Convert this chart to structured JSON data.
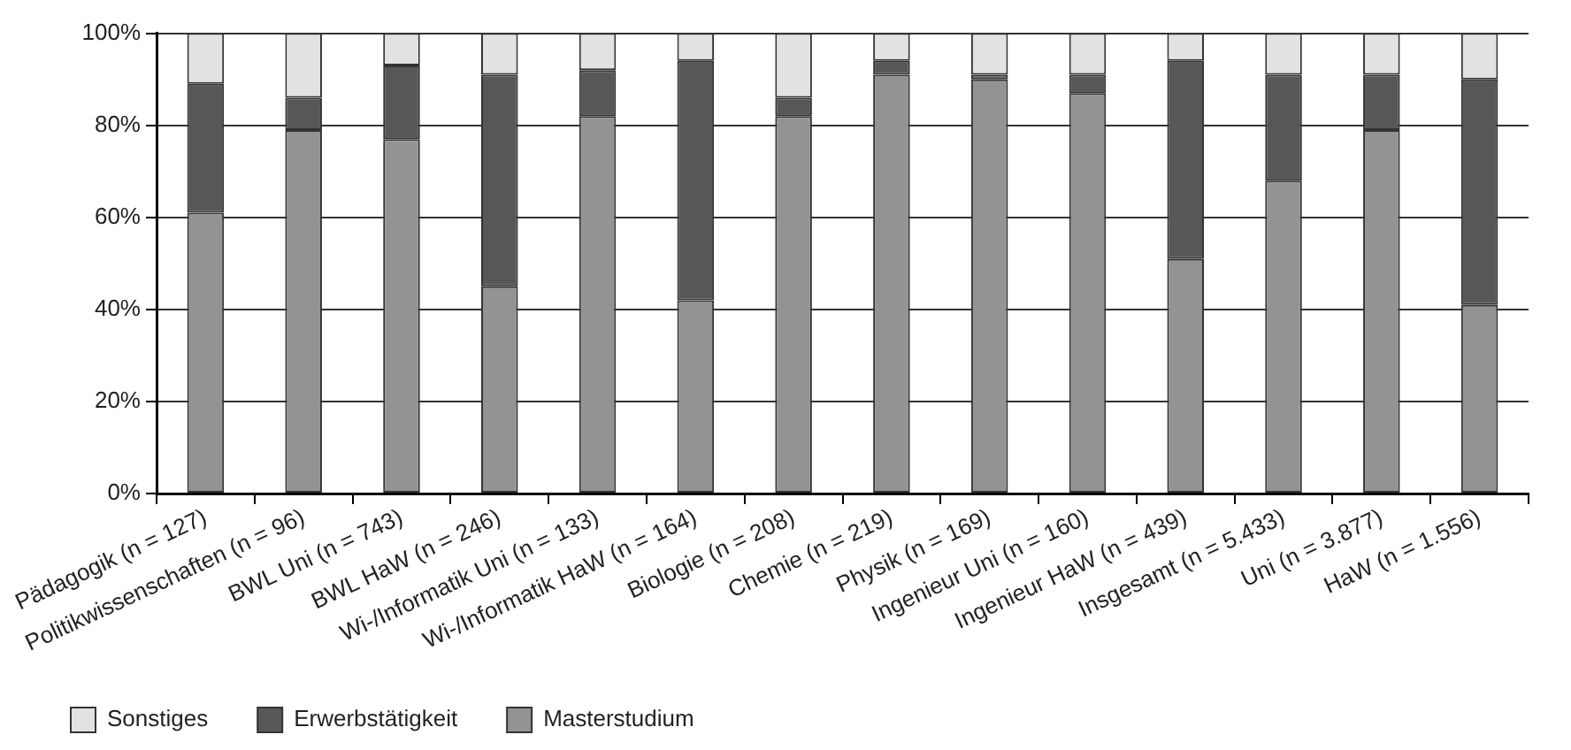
{
  "chart_data": {
    "type": "bar",
    "stacked": true,
    "categories": [
      "Pädagogik (n = 127)",
      "Politikwissenschaften (n = 96)",
      "BWL Uni (n = 743)",
      "BWL HaW (n = 246)",
      "Wi-/Informatik Uni (n = 133)",
      "Wi-/Informatik HaW (n = 164)",
      "Biologie (n = 208)",
      "Chemie (n = 219)",
      "Physik (n = 169)",
      "Ingenieur Uni (n = 160)",
      "Ingenieur HaW (n = 439)",
      "Insgesamt (n = 5.433)",
      "Uni (n = 3.877)",
      "HaW (n = 1.556)"
    ],
    "series": [
      {
        "name": "Masterstudium",
        "color": "#939393",
        "values": [
          61,
          79,
          77,
          45,
          82,
          42,
          82,
          91,
          90,
          87,
          51,
          68,
          79,
          41
        ]
      },
      {
        "name": "Erwerbstätigkeit",
        "color": "#575757",
        "values": [
          28,
          7,
          16,
          46,
          10,
          52,
          4,
          3,
          1,
          4,
          43,
          23,
          12,
          49
        ]
      },
      {
        "name": "Sonstiges",
        "color": "#e2e2e2",
        "values": [
          11,
          14,
          7,
          9,
          8,
          6,
          14,
          6,
          9,
          9,
          6,
          9,
          9,
          10
        ]
      }
    ],
    "ylim": [
      0,
      100
    ],
    "yticks": [
      {
        "value": 0,
        "label": "0%"
      },
      {
        "value": 20,
        "label": "20%"
      },
      {
        "value": 40,
        "label": "40%"
      },
      {
        "value": 60,
        "label": "60%"
      },
      {
        "value": 80,
        "label": "80%"
      },
      {
        "value": 100,
        "label": "100%"
      }
    ],
    "grid": "y",
    "legend": "bottom left"
  }
}
